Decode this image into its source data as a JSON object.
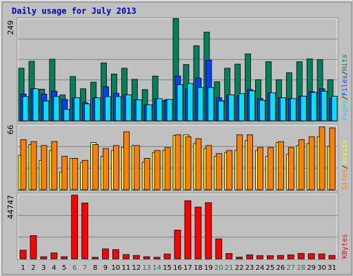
{
  "chart_data": {
    "type": "bar",
    "title": "Daily usage for July 2013",
    "colors": {
      "hits": "#00805c",
      "files": "#0040ff",
      "pages": "#00e0ff",
      "visits": "#ffff00",
      "sites": "#ff8000",
      "kbytes": "#ff0000",
      "weekend_label": "#00805c",
      "weekday_label": "#000000",
      "background": "#c0c0c0",
      "grid": "#808080"
    },
    "x": [
      "1",
      "2",
      "3",
      "4",
      "5",
      "6",
      "7",
      "8",
      "9",
      "10",
      "11",
      "12",
      "13",
      "14",
      "15",
      "16",
      "17",
      "18",
      "19",
      "20",
      "21",
      "22",
      "23",
      "24",
      "25",
      "26",
      "27",
      "28",
      "29",
      "30",
      "31"
    ],
    "weekend_days": [
      "6",
      "7",
      "13",
      "14",
      "20",
      "21",
      "27",
      "28"
    ],
    "panels": [
      {
        "name": "requests",
        "ymax_label": "249",
        "ymax": 249,
        "side_label": [
          {
            "text": "Pages",
            "series": "pages"
          },
          {
            "text": "/",
            "series": "separator"
          },
          {
            "text": "Files",
            "series": "files"
          },
          {
            "text": "/",
            "series": "separator"
          },
          {
            "text": "Hits",
            "series": "hits"
          }
        ],
        "series": [
          {
            "key": "hits",
            "values": [
              128,
              145,
              77,
              150,
              63,
              108,
              78,
              94,
              141,
              114,
              128,
              101,
              76,
              109,
              49,
              249,
              137,
              183,
              216,
              95,
              128,
              138,
              163,
              100,
              144,
              100,
              117,
              144,
              151,
              149,
              100
            ]
          },
          {
            "key": "files",
            "values": [
              65,
              78,
              65,
              72,
              52,
              56,
              44,
              56,
              83,
              67,
              63,
              51,
              39,
              54,
              52,
              109,
              78,
              104,
              148,
              56,
              63,
              61,
              76,
              54,
              68,
              56,
              54,
              60,
              71,
              78,
              55
            ]
          },
          {
            "key": "pages",
            "values": [
              59,
              78,
              48,
              59,
              28,
              56,
              41,
              56,
              59,
              59,
              63,
              51,
              39,
              54,
              52,
              88,
              91,
              81,
              81,
              48,
              63,
              66,
              73,
              50,
              68,
              56,
              54,
              60,
              69,
              72,
              60
            ]
          }
        ]
      },
      {
        "name": "visitors",
        "ymax_label": "66",
        "ymax": 66,
        "side_label": [
          {
            "text": "Sites",
            "series": "sites"
          },
          {
            "text": "/",
            "series": "separator"
          },
          {
            "text": "Visits",
            "series": "visits"
          }
        ],
        "series": [
          {
            "key": "visits",
            "values": [
              35,
              46,
              30,
              40,
              18,
              32,
              28,
              48,
              34,
              40,
              43,
              45,
              28,
              38,
              40,
              55,
              56,
              47,
              42,
              34,
              38,
              40,
              50,
              40,
              34,
              48,
              36,
              45,
              47,
              54,
              44
            ]
          },
          {
            "key": "sites",
            "values": [
              51,
              49,
              45,
              49,
              34,
              32,
              30,
              46,
              42,
              45,
              59,
              45,
              32,
              40,
              43,
              56,
              54,
              52,
              45,
              37,
              40,
              56,
              56,
              43,
              43,
              49,
              43,
              51,
              54,
              64,
              63
            ]
          }
        ]
      },
      {
        "name": "kbytes",
        "ymax_label": "44747",
        "ymax": 44747,
        "side_label": [
          {
            "text": "KBytes",
            "series": "kbytes"
          }
        ],
        "series": [
          {
            "key": "kbytes",
            "values": [
              5900,
              16000,
              1400,
              4000,
              1400,
              44000,
              38500,
              1000,
              6800,
              6300,
              2900,
              2300,
              1400,
              1000,
              3300,
              19800,
              40000,
              35700,
              38700,
              13700,
              3600,
              1100,
              2700,
              2200,
              2100,
              2300,
              2700,
              3700,
              3500,
              3300,
              2300
            ]
          }
        ]
      }
    ]
  }
}
